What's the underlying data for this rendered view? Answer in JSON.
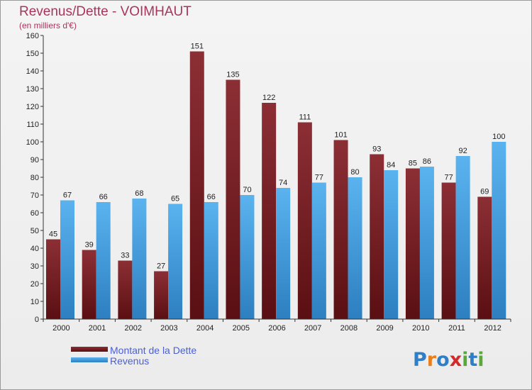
{
  "chart_data": {
    "type": "bar",
    "title": "Revenus/Dette - VOIMHAUT",
    "subtitle": "(en milliers d'€)",
    "categories": [
      "2000",
      "2001",
      "2002",
      "2003",
      "2004",
      "2005",
      "2006",
      "2007",
      "2008",
      "2009",
      "2010",
      "2011",
      "2012"
    ],
    "series": [
      {
        "name": "Montant de la Dette",
        "color": "#7a1e22",
        "values": [
          45,
          39,
          33,
          27,
          151,
          135,
          122,
          111,
          101,
          93,
          85,
          77,
          69
        ]
      },
      {
        "name": "Revenus",
        "color": "#4aa6e6",
        "values": [
          67,
          66,
          68,
          65,
          66,
          70,
          74,
          77,
          80,
          84,
          86,
          92,
          100
        ]
      }
    ],
    "ylim": [
      0,
      160
    ],
    "yticks": [
      0,
      10,
      20,
      30,
      40,
      50,
      60,
      70,
      80,
      90,
      100,
      110,
      120,
      130,
      140,
      150,
      160
    ],
    "grid": false,
    "legend": "bottom-left"
  },
  "logo": {
    "text": "Proxiti",
    "letters": [
      "P",
      "r",
      "o",
      "x",
      "i",
      "t",
      "i"
    ],
    "colors": [
      "#2f7fc8",
      "#e87e1e",
      "#2f7fc8",
      "#d42a2a",
      "#59a83a",
      "#2f7fc8",
      "#59a83a"
    ]
  }
}
